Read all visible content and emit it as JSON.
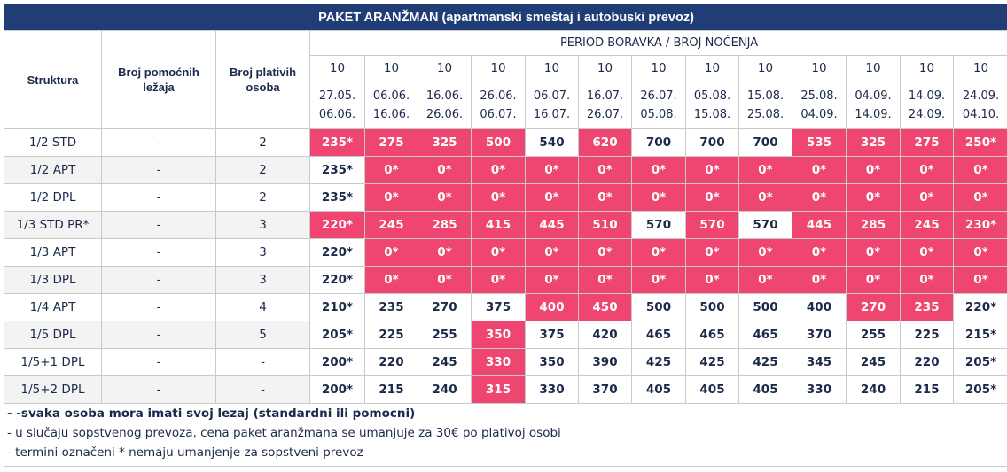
{
  "title": "PAKET ARANŽMAN (apartmanski smeštaj i autobuski prevoz)",
  "headers": {
    "struktura": "Struktura",
    "pomocni": "Broj pomoćnih ležaja",
    "platnih": "Broj plativih osoba",
    "period": "PERIOD BORAVKA / BROJ NOĆENJA"
  },
  "periods": [
    {
      "nights": "10",
      "from": "27.05.",
      "to": "06.06."
    },
    {
      "nights": "10",
      "from": "06.06.",
      "to": "16.06."
    },
    {
      "nights": "10",
      "from": "16.06.",
      "to": "26.06."
    },
    {
      "nights": "10",
      "from": "26.06.",
      "to": "06.07."
    },
    {
      "nights": "10",
      "from": "06.07.",
      "to": "16.07."
    },
    {
      "nights": "10",
      "from": "16.07.",
      "to": "26.07."
    },
    {
      "nights": "10",
      "from": "26.07.",
      "to": "05.08."
    },
    {
      "nights": "10",
      "from": "05.08.",
      "to": "15.08."
    },
    {
      "nights": "10",
      "from": "15.08.",
      "to": "25.08."
    },
    {
      "nights": "10",
      "from": "25.08.",
      "to": "04.09."
    },
    {
      "nights": "10",
      "from": "04.09.",
      "to": "14.09."
    },
    {
      "nights": "10",
      "from": "14.09.",
      "to": "24.09."
    },
    {
      "nights": "10",
      "from": "24.09.",
      "to": "04.10."
    }
  ],
  "colors": {
    "highlight": "#ee4670",
    "header": "#213d76",
    "grey": "#f3f3f3"
  },
  "rows": [
    {
      "struktura": "1/2 STD",
      "pomocni": "-",
      "platnih": "2",
      "prices": [
        "235*",
        "275",
        "325",
        "500",
        "540",
        "620",
        "700",
        "700",
        "700",
        "535",
        "325",
        "275",
        "250*"
      ],
      "highlight": [
        1,
        1,
        1,
        1,
        0,
        1,
        0,
        0,
        0,
        1,
        1,
        1,
        1
      ]
    },
    {
      "struktura": "1/2 APT",
      "pomocni": "-",
      "platnih": "2",
      "prices": [
        "235*",
        "0*",
        "0*",
        "0*",
        "0*",
        "0*",
        "0*",
        "0*",
        "0*",
        "0*",
        "0*",
        "0*",
        "0*"
      ],
      "highlight": [
        0,
        1,
        1,
        1,
        1,
        1,
        1,
        1,
        1,
        1,
        1,
        1,
        1
      ]
    },
    {
      "struktura": "1/2 DPL",
      "pomocni": "-",
      "platnih": "2",
      "prices": [
        "235*",
        "0*",
        "0*",
        "0*",
        "0*",
        "0*",
        "0*",
        "0*",
        "0*",
        "0*",
        "0*",
        "0*",
        "0*"
      ],
      "highlight": [
        0,
        1,
        1,
        1,
        1,
        1,
        1,
        1,
        1,
        1,
        1,
        1,
        1
      ]
    },
    {
      "struktura": "1/3 STD PR*",
      "pomocni": "-",
      "platnih": "3",
      "prices": [
        "220*",
        "245",
        "285",
        "415",
        "445",
        "510",
        "570",
        "570",
        "570",
        "445",
        "285",
        "245",
        "230*"
      ],
      "highlight": [
        1,
        1,
        1,
        1,
        1,
        1,
        0,
        1,
        0,
        1,
        1,
        1,
        1
      ]
    },
    {
      "struktura": "1/3 APT",
      "pomocni": "-",
      "platnih": "3",
      "prices": [
        "220*",
        "0*",
        "0*",
        "0*",
        "0*",
        "0*",
        "0*",
        "0*",
        "0*",
        "0*",
        "0*",
        "0*",
        "0*"
      ],
      "highlight": [
        0,
        1,
        1,
        1,
        1,
        1,
        1,
        1,
        1,
        1,
        1,
        1,
        1
      ]
    },
    {
      "struktura": "1/3 DPL",
      "pomocni": "-",
      "platnih": "3",
      "prices": [
        "220*",
        "0*",
        "0*",
        "0*",
        "0*",
        "0*",
        "0*",
        "0*",
        "0*",
        "0*",
        "0*",
        "0*",
        "0*"
      ],
      "highlight": [
        0,
        1,
        1,
        1,
        1,
        1,
        1,
        1,
        1,
        1,
        1,
        1,
        1
      ]
    },
    {
      "struktura": "1/4 APT",
      "pomocni": "-",
      "platnih": "4",
      "prices": [
        "210*",
        "235",
        "270",
        "375",
        "400",
        "450",
        "500",
        "500",
        "500",
        "400",
        "270",
        "235",
        "220*"
      ],
      "highlight": [
        0,
        0,
        0,
        0,
        1,
        1,
        0,
        0,
        0,
        0,
        1,
        1,
        0
      ]
    },
    {
      "struktura": "1/5 DPL",
      "pomocni": "-",
      "platnih": "5",
      "prices": [
        "205*",
        "225",
        "255",
        "350",
        "375",
        "420",
        "465",
        "465",
        "465",
        "370",
        "255",
        "225",
        "215*"
      ],
      "highlight": [
        0,
        0,
        0,
        1,
        0,
        0,
        0,
        0,
        0,
        0,
        0,
        0,
        0
      ]
    },
    {
      "struktura": "1/5+1 DPL",
      "pomocni": "-",
      "platnih": "-",
      "prices": [
        "200*",
        "220",
        "245",
        "330",
        "350",
        "390",
        "425",
        "425",
        "425",
        "345",
        "245",
        "220",
        "205*"
      ],
      "highlight": [
        0,
        0,
        0,
        1,
        0,
        0,
        0,
        0,
        0,
        0,
        0,
        0,
        0
      ]
    },
    {
      "struktura": "1/5+2 DPL",
      "pomocni": "-",
      "platnih": "-",
      "prices": [
        "200*",
        "215",
        "240",
        "315",
        "330",
        "370",
        "405",
        "405",
        "405",
        "330",
        "240",
        "215",
        "205*"
      ],
      "highlight": [
        0,
        0,
        0,
        1,
        0,
        0,
        0,
        0,
        0,
        0,
        0,
        0,
        0
      ]
    }
  ],
  "notes": [
    "- -svaka osoba mora imati svoj lezaj (standardni ili pomocni)",
    "- u slučaju sopstvenog prevoza, cena paket aranžmana se umanjuje za 30€ po plativoj osobi",
    "- termini označeni * nemaju umanjenje za sopstveni prevoz"
  ]
}
